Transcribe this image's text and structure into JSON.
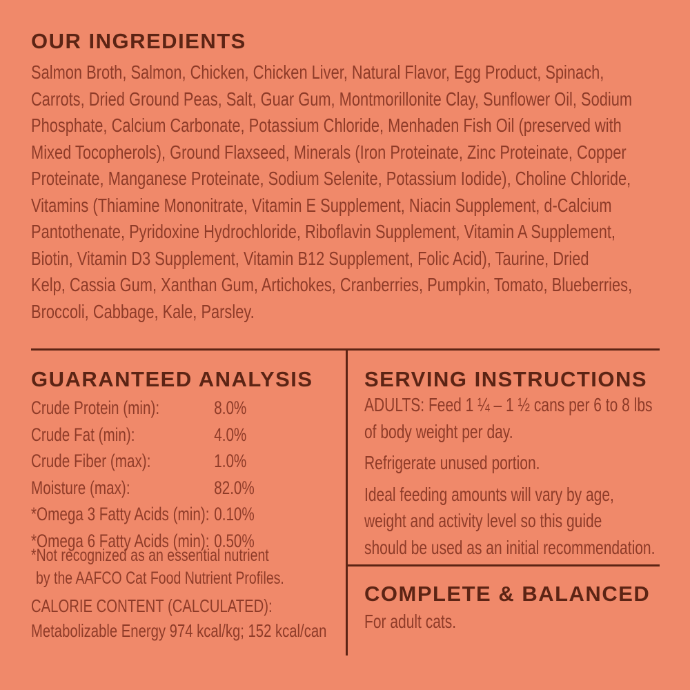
{
  "colors": {
    "background": "#F0896A",
    "heading_text": "#5C2414",
    "body_text": "#8E3B28",
    "divider": "#5C2414"
  },
  "ingredients": {
    "title": "OUR INGREDIENTS",
    "lines": [
      "Salmon Broth, Salmon, Chicken, Chicken Liver, Natural Flavor, Egg Product, Spinach,",
      "Carrots, Dried Ground Peas, Salt, Guar Gum, Montmorillonite Clay, Sunflower Oil, Sodium",
      "Phosphate, Calcium Carbonate, Potassium Chloride, Menhaden Fish Oil (preserved with",
      "Mixed Tocopherols), Ground Flaxseed, Minerals (Iron Proteinate, Zinc Proteinate, Copper",
      "Proteinate, Manganese Proteinate, Sodium Selenite, Potassium Iodide), Choline Chloride,",
      "Vitamins (Thiamine Mononitrate, Vitamin E Supplement, Niacin Supplement, d-Calcium",
      "Pantothenate, Pyridoxine Hydrochloride, Riboflavin Supplement, Vitamin A Supplement,",
      "Biotin, Vitamin D3 Supplement, Vitamin B12 Supplement, Folic Acid), Taurine, Dried",
      "Kelp, Cassia Gum, Xanthan Gum, Artichokes, Cranberries, Pumpkin, Tomato, Blueberries,",
      "Broccoli, Cabbage, Kale, Parsley."
    ]
  },
  "guaranteed_analysis": {
    "title": "GUARANTEED ANALYSIS",
    "rows": [
      {
        "label": "Crude Protein (min):",
        "value": "8.0%"
      },
      {
        "label": "Crude Fat (min):",
        "value": "4.0%"
      },
      {
        "label": "Crude Fiber (max):",
        "value": "1.0%"
      },
      {
        "label": "Moisture (max):",
        "value": "82.0%"
      },
      {
        "label": "*Omega 3 Fatty Acids (min):",
        "value": "0.10%"
      },
      {
        "label": "*Omega 6 Fatty Acids (min):",
        "value": "0.50%"
      }
    ],
    "footnote_lines": [
      "*Not recognized as an essential nutrient",
      "by the AAFCO Cat Food Nutrient Profiles."
    ],
    "calorie_heading": "CALORIE CONTENT (CALCULATED):",
    "calorie_value": "Metabolizable Energy 974 kcal/kg; 152 kcal/can"
  },
  "serving_instructions": {
    "title": "SERVING INSTRUCTIONS",
    "paragraphs": [
      {
        "lines": [
          "ADULTS: Feed 1 ¼ – 1 ½ cans per 6 to 8 lbs",
          "of body weight per day."
        ]
      },
      {
        "lines": [
          "Refrigerate unused portion."
        ]
      },
      {
        "lines": [
          "Ideal feeding amounts will vary by age,",
          "weight and activity level so this guide",
          "should be used as an initial recommendation."
        ]
      }
    ]
  },
  "complete_balanced": {
    "title": "COMPLETE & BALANCED",
    "subtitle": "For adult cats."
  }
}
